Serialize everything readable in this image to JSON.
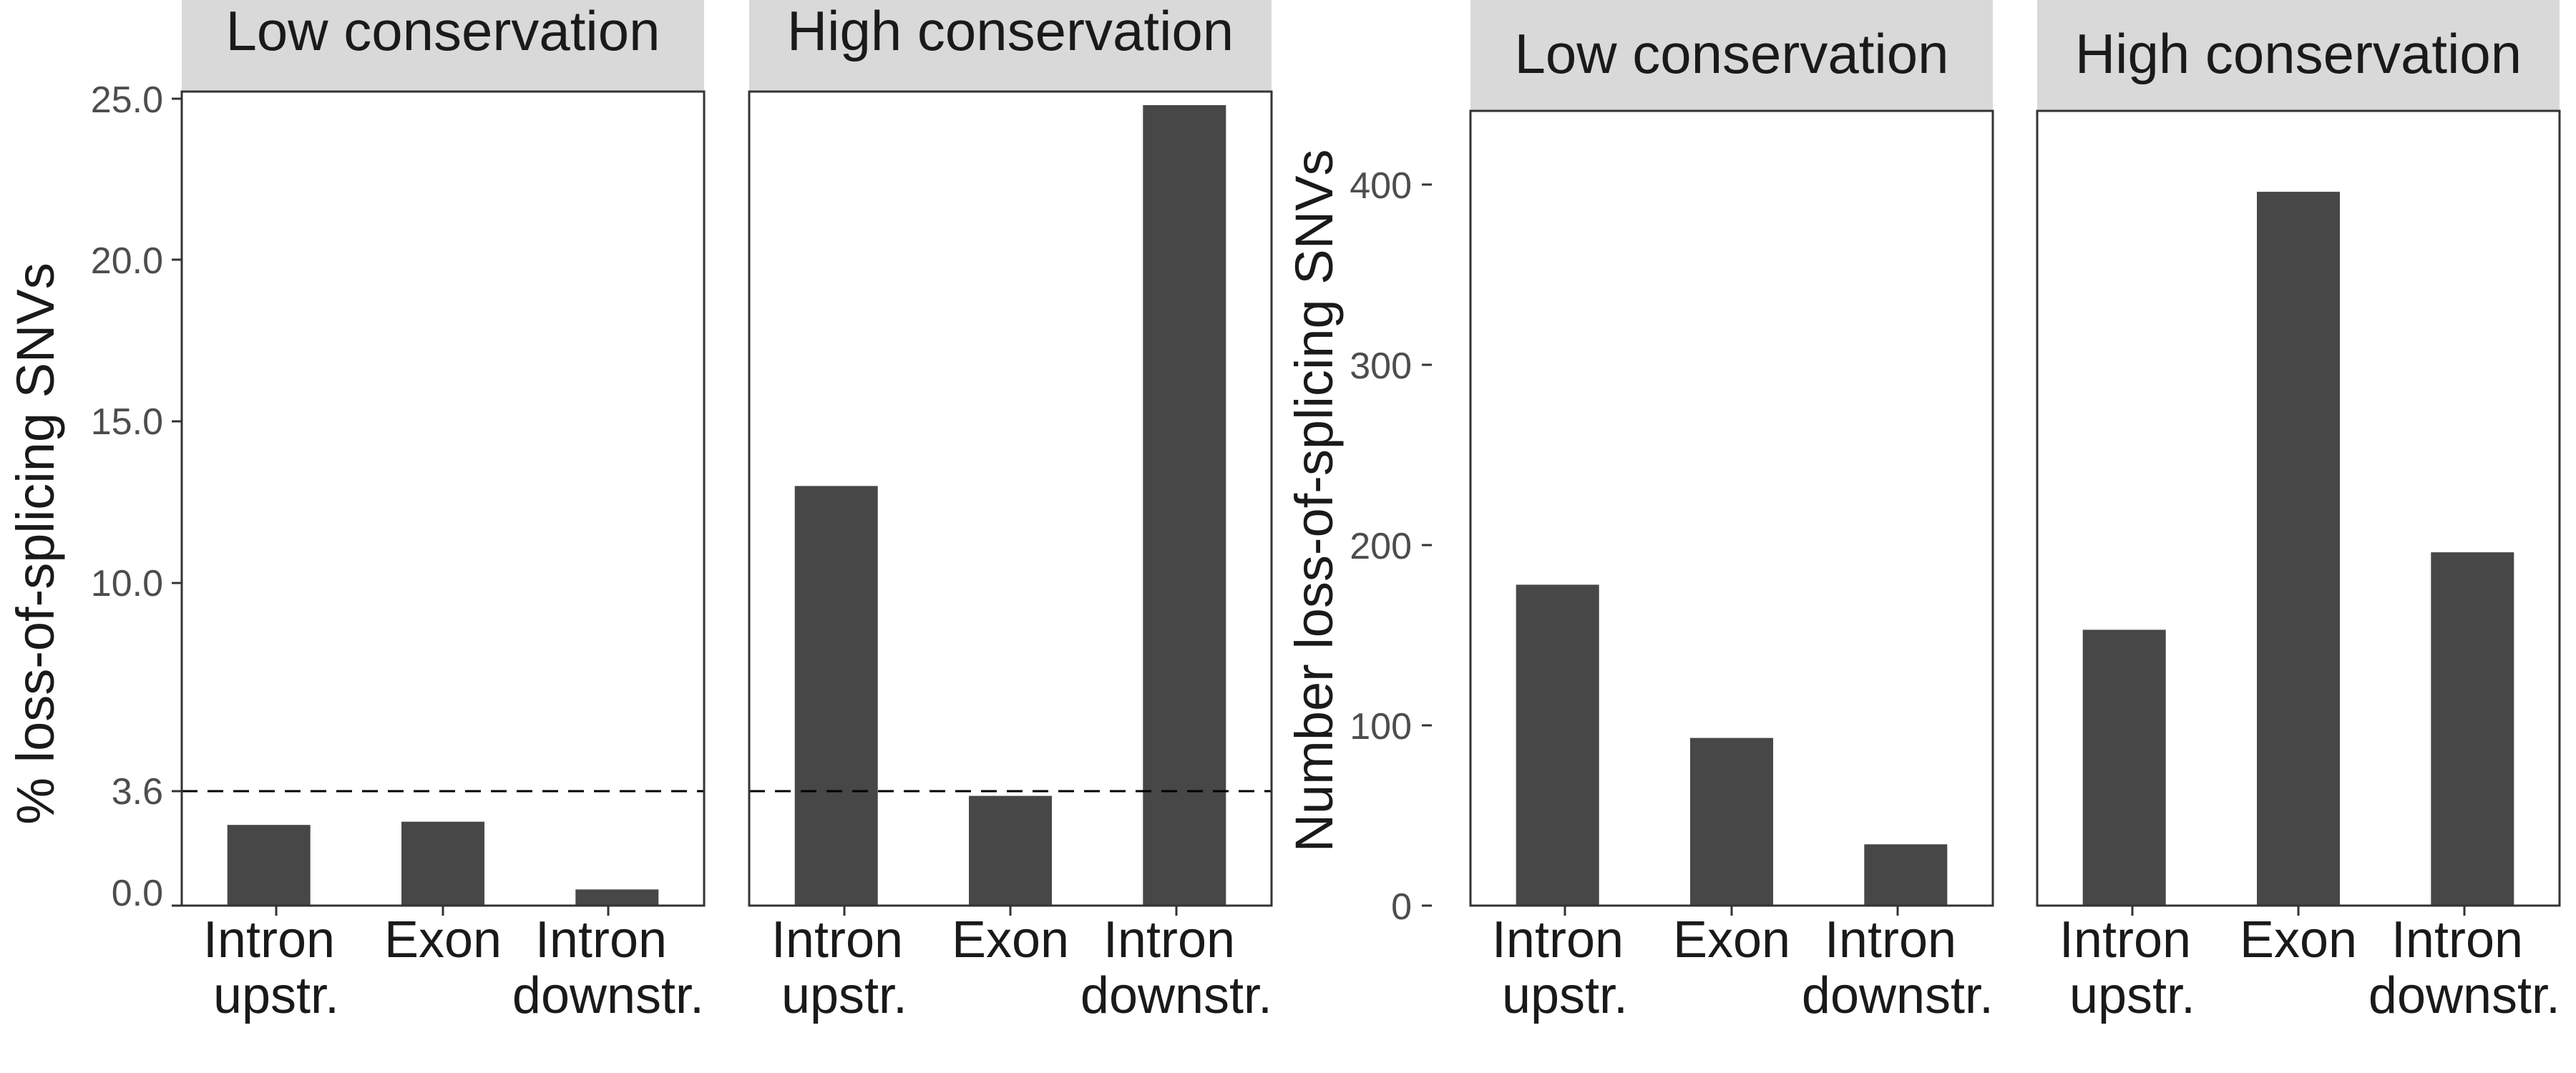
{
  "colors": {
    "bar": "#474747",
    "strip": "#d9d9d9",
    "axis": "#333333",
    "text_dark": "#1a1a1a",
    "tick_text": "#4d4d4d",
    "reference_line": "#000000"
  },
  "chart_data": [
    {
      "type": "bar",
      "panel_group": "percent",
      "facet": "Low conservation",
      "categories": [
        "Intron upstr.",
        "Exon",
        "Intron downstr."
      ],
      "values": [
        2.5,
        2.6,
        0.5
      ],
      "ylabel": "% loss-of-splicing SNVs",
      "ylim": [
        0,
        25.0
      ],
      "yticks": [
        "0.0",
        "3.6",
        "10.0",
        "15.0",
        "20.0",
        "25.0"
      ],
      "reference_line": {
        "y": 3.6,
        "style": "dashed"
      },
      "grid": false
    },
    {
      "type": "bar",
      "panel_group": "percent",
      "facet": "High conservation",
      "categories": [
        "Intron upstr.",
        "Exon",
        "Intron downstr."
      ],
      "values": [
        13.0,
        3.4,
        24.8
      ],
      "ylabel": "% loss-of-splicing SNVs",
      "ylim": [
        0,
        25.0
      ],
      "reference_line": {
        "y": 3.6,
        "style": "dashed"
      },
      "grid": false
    },
    {
      "type": "bar",
      "panel_group": "count",
      "facet": "Low conservation",
      "categories": [
        "Intron upstr.",
        "Exon",
        "Intron downstr."
      ],
      "values": [
        178,
        93,
        34
      ],
      "ylabel": "Number loss-of-splicing SNVs",
      "ylim": [
        0,
        400
      ],
      "yticks": [
        "0",
        "100",
        "200",
        "300",
        "400"
      ],
      "grid": false
    },
    {
      "type": "bar",
      "panel_group": "count",
      "facet": "High conservation",
      "categories": [
        "Intron upstr.",
        "Exon",
        "Intron downstr."
      ],
      "values": [
        153,
        396,
        196
      ],
      "ylabel": "Number loss-of-splicing SNVs",
      "ylim": [
        0,
        400
      ],
      "grid": false
    }
  ],
  "left_plot": {
    "ylabel": "% loss-of-splicing SNVs",
    "facets": [
      "Low conservation",
      "High conservation"
    ],
    "yticks": [
      "0.0",
      "3.6",
      "10.0",
      "15.0",
      "20.0",
      "25.0"
    ],
    "xtick_lines": [
      [
        "Intron",
        "upstr."
      ],
      [
        "Exon",
        ""
      ],
      [
        "Intron",
        "downstr."
      ]
    ]
  },
  "right_plot": {
    "ylabel": "Number loss-of-splicing SNVs",
    "facets": [
      "Low conservation",
      "High conservation"
    ],
    "yticks": [
      "0",
      "100",
      "200",
      "300",
      "400"
    ],
    "xtick_lines": [
      [
        "Intron",
        "upstr."
      ],
      [
        "Exon",
        ""
      ],
      [
        "Intron",
        "downstr."
      ]
    ]
  }
}
